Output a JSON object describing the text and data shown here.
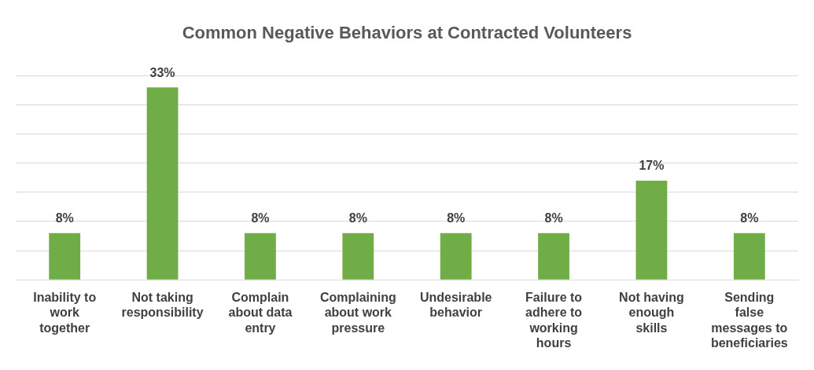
{
  "chart_data": {
    "type": "bar",
    "title": "Common Negative Behaviors at Contracted Volunteers",
    "categories": [
      "Inability to work together",
      "Not taking responsibility",
      "Complain about data entry",
      "Complaining about work pressure",
      "Undesirable behavior",
      "Failure to adhere to working hours",
      "Not having enough skills",
      "Sending false messages to beneficiaries"
    ],
    "values": [
      8,
      33,
      8,
      8,
      8,
      8,
      17,
      8
    ],
    "value_labels": [
      "8%",
      "33%",
      "8%",
      "8%",
      "8%",
      "8%",
      "17%",
      "8%"
    ],
    "color": "#70ad47",
    "ylim": [
      0,
      35
    ],
    "yticks": [
      0,
      5,
      10,
      15,
      20,
      25,
      30,
      35
    ],
    "grid": "y",
    "tick_labels": "x"
  }
}
